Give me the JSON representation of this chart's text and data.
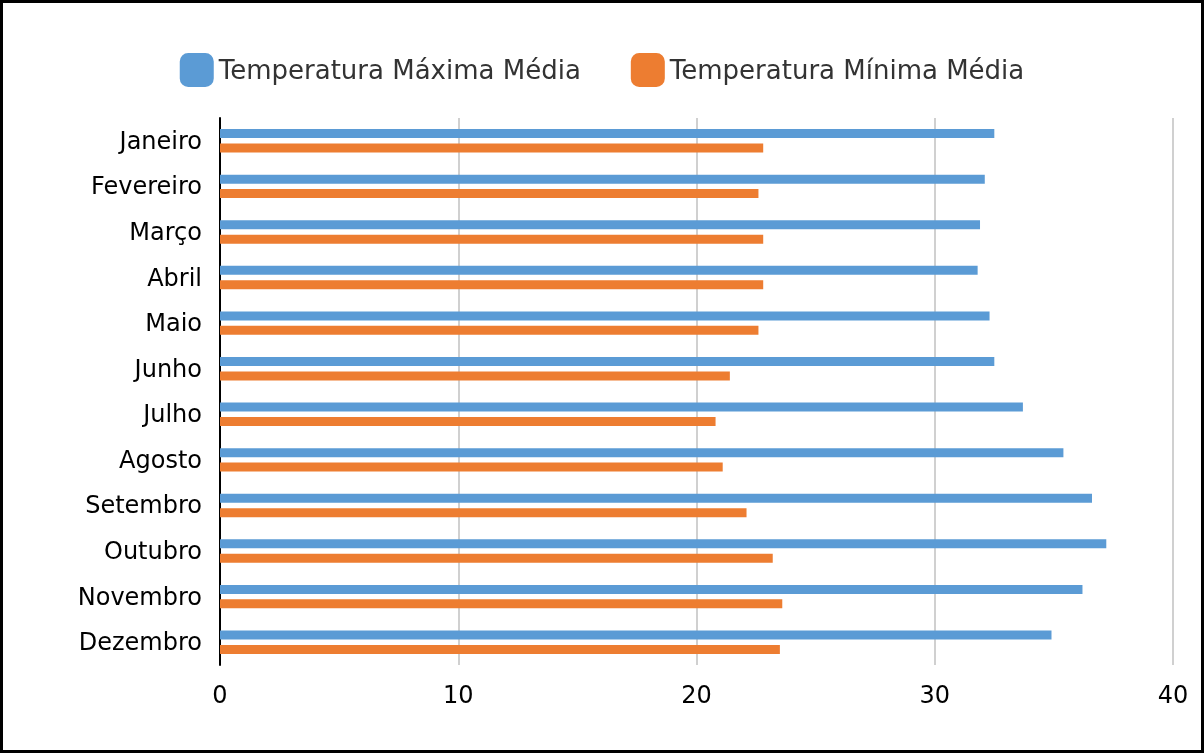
{
  "chart_data": {
    "type": "bar",
    "orientation": "horizontal",
    "categories": [
      "Janeiro",
      "Fevereiro",
      "Março",
      "Abril",
      "Maio",
      "Junho",
      "Julho",
      "Agosto",
      "Setembro",
      "Outubro",
      "Novembro",
      "Dezembro"
    ],
    "series": [
      {
        "name": "Temperatura Máxima Média",
        "color": "#5b9bd5",
        "values": [
          32.5,
          32.1,
          31.9,
          31.8,
          32.3,
          32.5,
          33.7,
          35.4,
          36.6,
          37.2,
          36.2,
          34.9
        ]
      },
      {
        "name": "Temperatura Mínima Média",
        "color": "#ed7d31",
        "values": [
          22.8,
          22.6,
          22.8,
          22.8,
          22.6,
          21.4,
          20.8,
          21.1,
          22.1,
          23.2,
          23.6,
          23.5
        ]
      }
    ],
    "xlim": [
      0,
      40
    ],
    "xticks": [
      0,
      10,
      20,
      30,
      40
    ],
    "grid": "x",
    "legend": "top"
  }
}
